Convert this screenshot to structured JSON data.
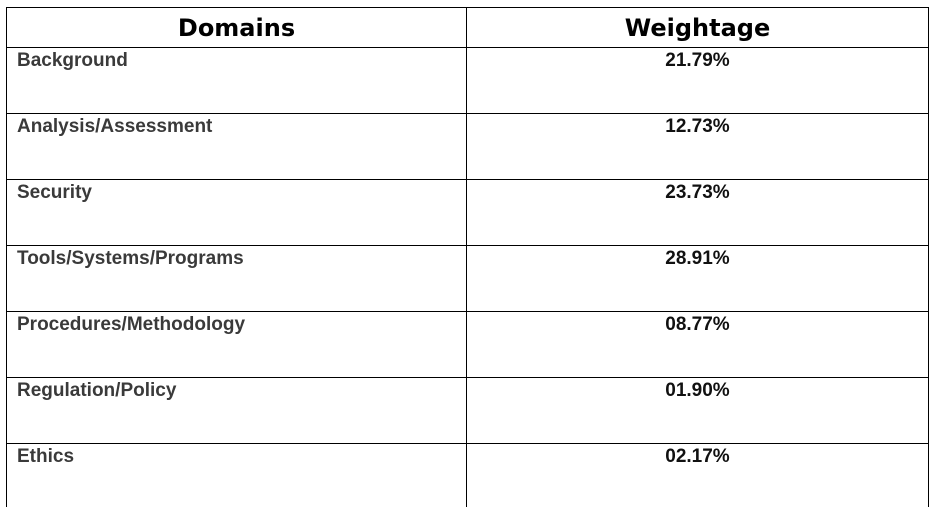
{
  "table": {
    "headers": [
      "Domains",
      "Weightage"
    ],
    "rows": [
      [
        "Background",
        "21.79%"
      ],
      [
        "Analysis/Assessment",
        "12.73%"
      ],
      [
        "Security",
        "23.73%"
      ],
      [
        "Tools/Systems/Programs",
        "28.91%"
      ],
      [
        "Procedures/Methodology",
        "08.77%"
      ],
      [
        "Regulation/Policy",
        "01.90%"
      ],
      [
        "Ethics",
        "02.17%"
      ]
    ]
  }
}
